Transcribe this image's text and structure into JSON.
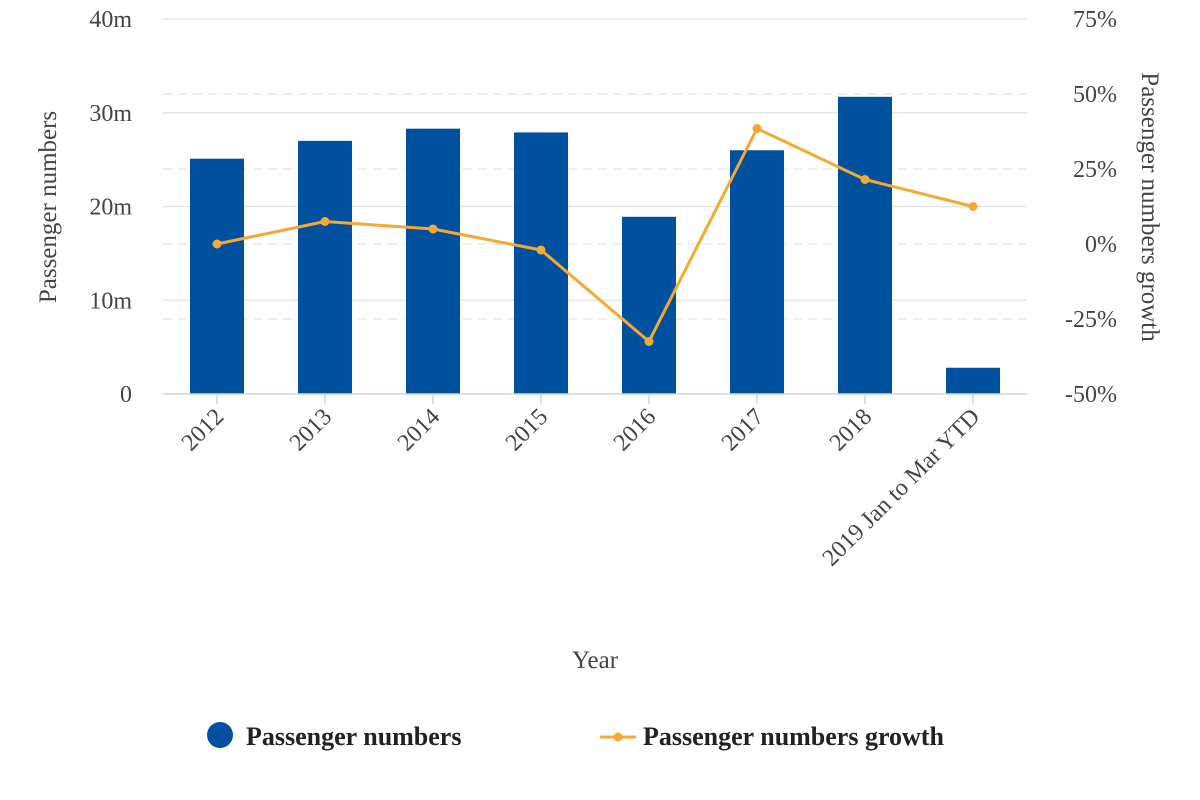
{
  "chart_data": {
    "type": "bar",
    "categories": [
      "2012",
      "2013",
      "2014",
      "2015",
      "2016",
      "2017",
      "2018",
      "2019 Jan to Mar YTD"
    ],
    "xlabel": "Year",
    "series": [
      {
        "name": "Passenger numbers",
        "type": "bar",
        "axis": "left",
        "color": "#0050A0",
        "values": [
          25.1,
          27.0,
          28.3,
          27.9,
          18.9,
          26.0,
          31.7,
          2.8
        ]
      },
      {
        "name": "Passenger numbers growth",
        "type": "line",
        "axis": "right",
        "color": "#F7A833",
        "values": [
          0,
          7.5,
          5,
          -2,
          -32.5,
          38.5,
          21.5,
          12.5
        ]
      }
    ],
    "left_axis": {
      "label": "Passenger numbers",
      "range": [
        0,
        40
      ],
      "ticks": [
        0,
        10,
        20,
        30,
        40
      ],
      "tick_labels": [
        "0",
        "10m",
        "20m",
        "30m",
        "40m"
      ]
    },
    "right_axis": {
      "label": "Passenger numbers growth",
      "range": [
        -50,
        75
      ],
      "ticks": [
        -50,
        -25,
        0,
        25,
        50,
        75
      ],
      "tick_labels": [
        "-50%",
        "-25%",
        "0%",
        "25%",
        "50%",
        "75%"
      ]
    },
    "grid": true,
    "legend": {
      "position": "bottom",
      "entries": [
        "Passenger numbers",
        "Passenger numbers growth"
      ]
    }
  }
}
